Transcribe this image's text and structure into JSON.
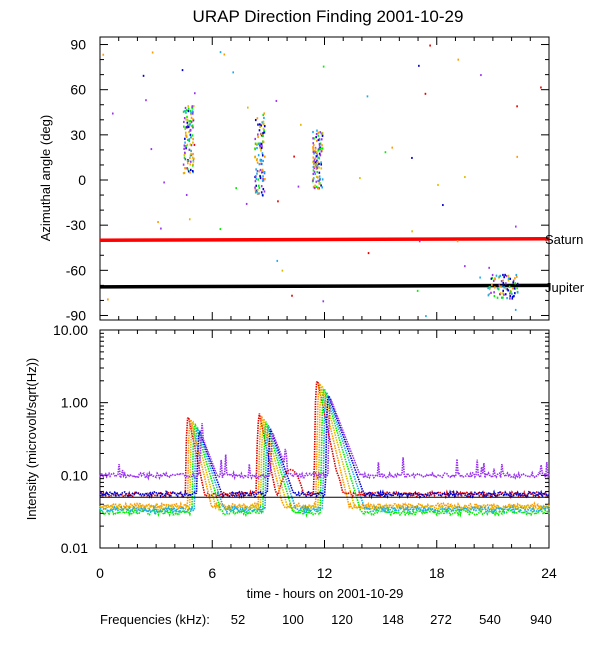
{
  "chart_data": {
    "type": "scatter",
    "title": "URAP Direction Finding  2001-10-29",
    "xlabel": "time - hours on 2001-10-29",
    "x_ticks": [
      0,
      6,
      12,
      18,
      24
    ],
    "xlim": [
      0,
      24
    ],
    "panels": [
      {
        "name": "azimuth",
        "ylabel": "Azimuthal angle (deg)",
        "ylim": [
          -93,
          95
        ],
        "y_ticks": [
          90,
          60,
          30,
          0,
          -30,
          -60,
          -90
        ],
        "reference_lines": [
          {
            "name": "Saturn",
            "color": "#ff0000",
            "y_start": -40,
            "y_end": -39
          },
          {
            "name": "Jupiter",
            "color": "#000000",
            "y_start": -71,
            "y_end": -70
          }
        ]
      },
      {
        "name": "intensity",
        "ylabel": "Intensity (microvolt/sqrt(Hz))",
        "scale": "log",
        "ylim": [
          0.01,
          10
        ],
        "y_ticks": [
          10.0,
          1.0,
          0.1,
          0.01
        ],
        "y_tick_labels": [
          "10.00",
          "1.00",
          "0.10",
          "0.01"
        ]
      }
    ],
    "legend_label": "Frequencies (kHz):",
    "series": [
      {
        "name": "52",
        "color": "#e00000",
        "background": 0.055
      },
      {
        "name": "100",
        "color": "#ff9900",
        "background": 0.038
      },
      {
        "name": "120",
        "color": "#ddbb00",
        "background": 0.036
      },
      {
        "name": "148",
        "color": "#00ee00",
        "background": 0.031
      },
      {
        "name": "272",
        "color": "#1aaaee",
        "background": 0.034
      },
      {
        "name": "540",
        "color": "#0000cc",
        "background": 0.055
      },
      {
        "name": "940",
        "color": "#9933ee",
        "background": 0.1
      }
    ],
    "bursts": [
      {
        "center_hour": 4.7,
        "azimuth_range": [
          5,
          50
        ],
        "peak_intensity": 0.7
      },
      {
        "center_hour": 8.5,
        "azimuth_range": [
          -10,
          45
        ],
        "peak_intensity": 0.75
      },
      {
        "center_hour": 11.6,
        "azimuth_range": [
          -5,
          35
        ],
        "peak_intensity": 2.2
      },
      {
        "center_hour": 21.5,
        "azimuth_range": [
          -78,
          -62
        ],
        "peak_intensity": 0.12
      }
    ]
  }
}
